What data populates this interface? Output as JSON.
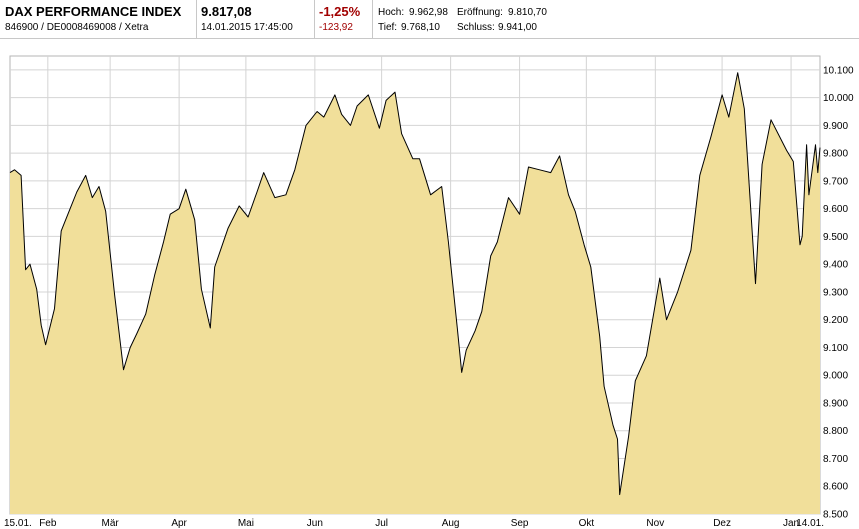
{
  "header": {
    "name": "DAX PERFORMANCE INDEX",
    "ids": "846900 / DE0008469008 / Xetra",
    "price": "9.817,08",
    "datetime": "14.01.2015 17:45:00",
    "change_pct": "-1,25%",
    "change_abs": "-123,92",
    "hoch_label": "Hoch:",
    "hoch_value": "9.962,98",
    "tief_label": "Tief:",
    "tief_value": "9.768,10",
    "eroeffnung_label": "Eröffnung:",
    "eroeffnung_value": "9.810,70",
    "schluss_label": "Schluss:",
    "schluss_value": "9.941,00"
  },
  "colors": {
    "fill": "#f1df9a",
    "line": "#000000",
    "grid": "#d4d4d4",
    "negative": "#a10000"
  },
  "chart_data": {
    "type": "area",
    "title": "",
    "xlabel": "",
    "ylabel": "",
    "ylim": [
      8500,
      10150
    ],
    "grid": true,
    "y_ticks": [
      "10.100",
      "10.000",
      "9.900",
      "9.800",
      "9.700",
      "9.600",
      "9.500",
      "9.400",
      "9.300",
      "9.200",
      "9.100",
      "9.000",
      "8.900",
      "8.800",
      "8.700",
      "8.600",
      "8.500"
    ],
    "x_ticks": [
      {
        "label": "15.01.",
        "date": "2014-01-15"
      },
      {
        "label": "Feb",
        "date": "2014-02-01"
      },
      {
        "label": "Mär",
        "date": "2014-03-01"
      },
      {
        "label": "Apr",
        "date": "2014-04-01"
      },
      {
        "label": "Mai",
        "date": "2014-05-01"
      },
      {
        "label": "Jun",
        "date": "2014-06-01"
      },
      {
        "label": "Jul",
        "date": "2014-07-01"
      },
      {
        "label": "Aug",
        "date": "2014-08-01"
      },
      {
        "label": "Sep",
        "date": "2014-09-01"
      },
      {
        "label": "Okt",
        "date": "2014-10-01"
      },
      {
        "label": "Nov",
        "date": "2014-11-01"
      },
      {
        "label": "Dez",
        "date": "2014-12-01"
      },
      {
        "label": "Jan",
        "date": "2015-01-01"
      },
      {
        "label": "14.01.",
        "date": "2015-01-14"
      }
    ],
    "series": [
      {
        "dates": [
          "2014-01-15",
          "2014-01-17",
          "2014-01-20",
          "2014-01-22",
          "2014-01-24",
          "2014-01-27",
          "2014-01-29",
          "2014-01-31",
          "2014-02-04",
          "2014-02-07",
          "2014-02-11",
          "2014-02-14",
          "2014-02-18",
          "2014-02-21",
          "2014-02-24",
          "2014-02-27",
          "2014-03-03",
          "2014-03-07",
          "2014-03-10",
          "2014-03-13",
          "2014-03-17",
          "2014-03-21",
          "2014-03-25",
          "2014-03-28",
          "2014-04-01",
          "2014-04-04",
          "2014-04-08",
          "2014-04-11",
          "2014-04-15",
          "2014-04-17",
          "2014-04-23",
          "2014-04-28",
          "2014-05-02",
          "2014-05-06",
          "2014-05-09",
          "2014-05-14",
          "2014-05-19",
          "2014-05-23",
          "2014-05-28",
          "2014-06-02",
          "2014-06-05",
          "2014-06-10",
          "2014-06-13",
          "2014-06-17",
          "2014-06-20",
          "2014-06-25",
          "2014-06-30",
          "2014-07-03",
          "2014-07-07",
          "2014-07-10",
          "2014-07-15",
          "2014-07-18",
          "2014-07-23",
          "2014-07-28",
          "2014-07-31",
          "2014-08-04",
          "2014-08-06",
          "2014-08-08",
          "2014-08-12",
          "2014-08-15",
          "2014-08-19",
          "2014-08-22",
          "2014-08-27",
          "2014-09-01",
          "2014-09-05",
          "2014-09-10",
          "2014-09-15",
          "2014-09-19",
          "2014-09-23",
          "2014-09-26",
          "2014-09-30",
          "2014-10-03",
          "2014-10-07",
          "2014-10-09",
          "2014-10-13",
          "2014-10-15",
          "2014-10-16",
          "2014-10-20",
          "2014-10-23",
          "2014-10-28",
          "2014-11-03",
          "2014-11-06",
          "2014-11-11",
          "2014-11-17",
          "2014-11-21",
          "2014-11-26",
          "2014-12-01",
          "2014-12-04",
          "2014-12-08",
          "2014-12-11",
          "2014-12-16",
          "2014-12-19",
          "2014-12-23",
          "2014-12-30",
          "2015-01-02",
          "2015-01-05",
          "2015-01-06",
          "2015-01-08",
          "2015-01-09",
          "2015-01-12",
          "2015-01-13",
          "2015-01-14"
        ],
        "values": [
          9730,
          9740,
          9720,
          9380,
          9400,
          9310,
          9180,
          9110,
          9240,
          9520,
          9600,
          9660,
          9720,
          9640,
          9680,
          9590,
          9290,
          9020,
          9100,
          9150,
          9220,
          9360,
          9480,
          9580,
          9600,
          9670,
          9560,
          9310,
          9170,
          9390,
          9530,
          9610,
          9570,
          9660,
          9730,
          9640,
          9650,
          9740,
          9900,
          9950,
          9930,
          10010,
          9940,
          9900,
          9970,
          10010,
          9890,
          9990,
          10020,
          9870,
          9780,
          9780,
          9650,
          9680,
          9480,
          9170,
          9010,
          9090,
          9160,
          9230,
          9430,
          9480,
          9640,
          9580,
          9750,
          9740,
          9730,
          9790,
          9650,
          9590,
          9470,
          9390,
          9140,
          8960,
          8820,
          8770,
          8570,
          8780,
          8980,
          9070,
          9350,
          9200,
          9300,
          9450,
          9720,
          9860,
          10010,
          9930,
          10090,
          9960,
          9330,
          9760,
          9920,
          9810,
          9770,
          9470,
          9500,
          9830,
          9650,
          9830,
          9730,
          9820
        ]
      }
    ]
  }
}
